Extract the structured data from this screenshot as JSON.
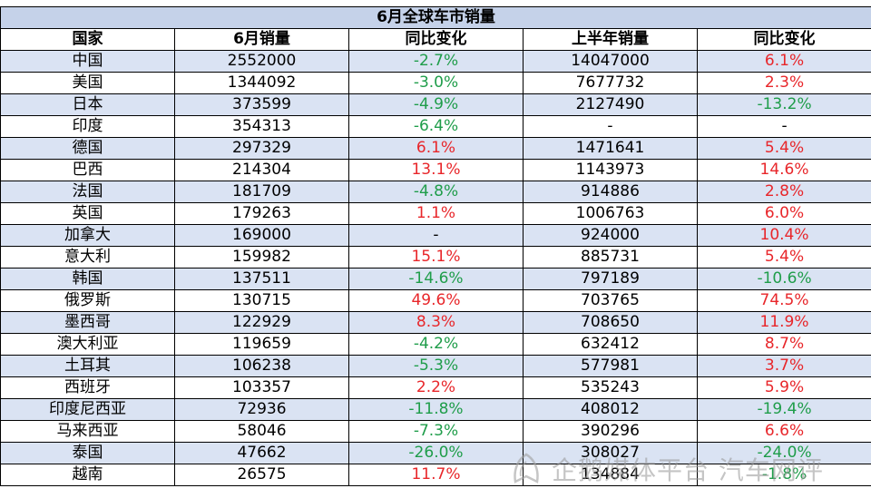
{
  "title": "6月全球车市销量",
  "headers": [
    "国家",
    "6月销量",
    "同比变化",
    "上半年销量",
    "同比变化"
  ],
  "rows": [
    {
      "country": "中国",
      "june": "2552000",
      "june_yoy": "-2.7%",
      "h1": "14047000",
      "h1_yoy": "6.1%"
    },
    {
      "country": "美国",
      "june": "1344092",
      "june_yoy": "-3.0%",
      "h1": "7677732",
      "h1_yoy": "2.3%"
    },
    {
      "country": "日本",
      "june": "373599",
      "june_yoy": "-4.9%",
      "h1": "2127490",
      "h1_yoy": "-13.2%"
    },
    {
      "country": "印度",
      "june": "354313",
      "june_yoy": "-6.4%",
      "h1": "-",
      "h1_yoy": "-"
    },
    {
      "country": "德国",
      "june": "297329",
      "june_yoy": "6.1%",
      "h1": "1471641",
      "h1_yoy": "5.4%"
    },
    {
      "country": "巴西",
      "june": "214304",
      "june_yoy": "13.1%",
      "h1": "1143973",
      "h1_yoy": "14.6%"
    },
    {
      "country": "法国",
      "june": "181709",
      "june_yoy": "-4.8%",
      "h1": "914886",
      "h1_yoy": "2.8%"
    },
    {
      "country": "英国",
      "june": "179263",
      "june_yoy": "1.1%",
      "h1": "1006763",
      "h1_yoy": "6.0%"
    },
    {
      "country": "加拿大",
      "june": "169000",
      "june_yoy": "-",
      "h1": "924000",
      "h1_yoy": "10.4%"
    },
    {
      "country": "意大利",
      "june": "159982",
      "june_yoy": "15.1%",
      "h1": "885731",
      "h1_yoy": "5.4%"
    },
    {
      "country": "韩国",
      "june": "137511",
      "june_yoy": "-14.6%",
      "h1": "797189",
      "h1_yoy": "-10.6%"
    },
    {
      "country": "俄罗斯",
      "june": "130715",
      "june_yoy": "49.6%",
      "h1": "703765",
      "h1_yoy": "74.5%"
    },
    {
      "country": "墨西哥",
      "june": "122929",
      "june_yoy": "8.3%",
      "h1": "708650",
      "h1_yoy": "11.9%"
    },
    {
      "country": "澳大利亚",
      "june": "119659",
      "june_yoy": "-4.2%",
      "h1": "632412",
      "h1_yoy": "8.7%"
    },
    {
      "country": "土耳其",
      "june": "106238",
      "june_yoy": "-5.3%",
      "h1": "577981",
      "h1_yoy": "3.7%"
    },
    {
      "country": "西班牙",
      "june": "103357",
      "june_yoy": "2.2%",
      "h1": "535243",
      "h1_yoy": "5.9%"
    },
    {
      "country": "印度尼西亚",
      "june": "72936",
      "june_yoy": "-11.8%",
      "h1": "408012",
      "h1_yoy": "-19.4%"
    },
    {
      "country": "马来西亚",
      "june": "58046",
      "june_yoy": "-7.3%",
      "h1": "390296",
      "h1_yoy": "6.6%"
    },
    {
      "country": "泰国",
      "june": "47662",
      "june_yoy": "-26.0%",
      "h1": "308027",
      "h1_yoy": "-24.0%"
    },
    {
      "country": "越南",
      "june": "26575",
      "june_yoy": "11.7%",
      "h1": "134884",
      "h1_yoy": "-1.8%"
    }
  ],
  "colors": {
    "title_bg": "#c5d2e9",
    "shaded_row_bg": "#dae3f3",
    "increase": "#e8262a",
    "decrease": "#1f9d4a"
  },
  "watermark": {
    "text": "企鹅媒体平台 汽车网评",
    "icon": "penguin-logo-icon"
  }
}
